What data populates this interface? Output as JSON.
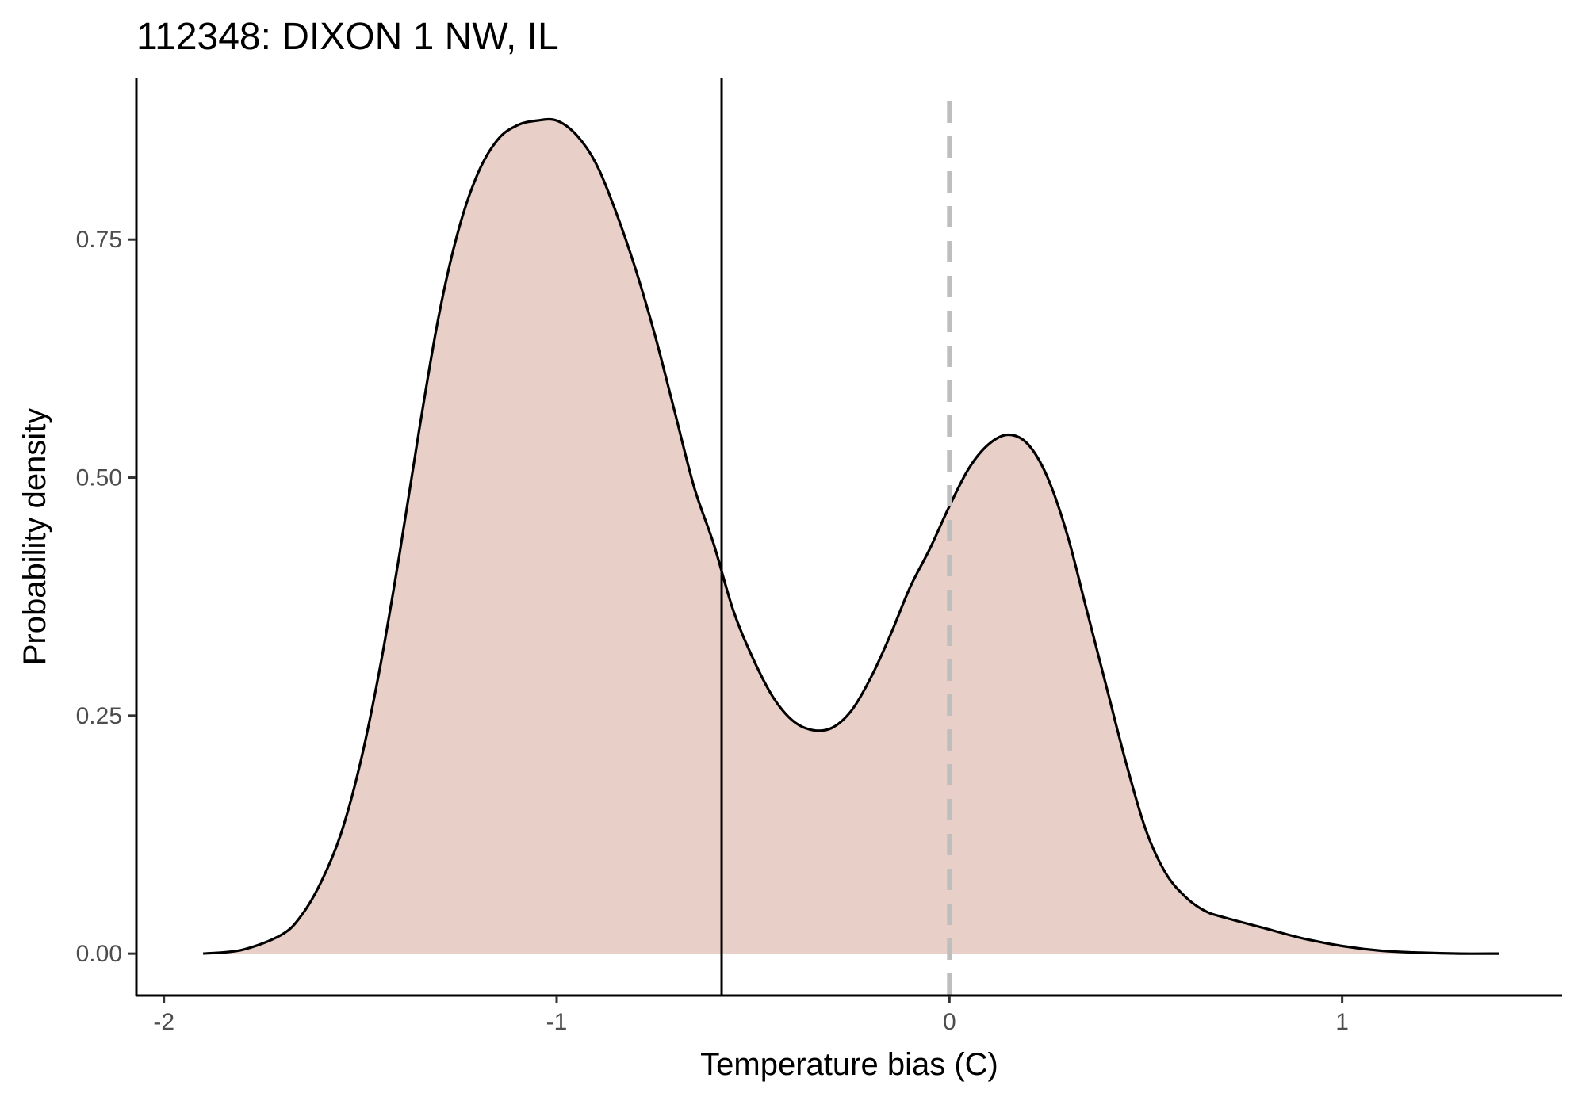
{
  "chart_data": {
    "type": "area",
    "title": "112348: DIXON 1 NW, IL",
    "xlabel": "Temperature bias (C)",
    "ylabel": "Probability density",
    "xlim": [
      -2.07,
      1.56
    ],
    "ylim": [
      -0.044,
      0.92
    ],
    "x_ticks": [
      -2,
      -1,
      0,
      1
    ],
    "x_tick_labels": [
      "-2",
      "-1",
      "0",
      "1"
    ],
    "y_ticks": [
      0.0,
      0.25,
      0.5,
      0.75
    ],
    "y_tick_labels": [
      "0.00",
      "0.25",
      "0.50",
      "0.75"
    ],
    "grid": false,
    "legend": "none",
    "fill_color": "#e8d0c9",
    "line_color": "#000000",
    "series": [
      {
        "x": [
          -1.9,
          -1.8,
          -1.7,
          -1.65,
          -1.6,
          -1.55,
          -1.5,
          -1.45,
          -1.4,
          -1.35,
          -1.3,
          -1.25,
          -1.2,
          -1.15,
          -1.1,
          -1.05,
          -1.0,
          -0.95,
          -0.9,
          -0.85,
          -0.8,
          -0.75,
          -0.7,
          -0.65,
          -0.6,
          -0.55,
          -0.5,
          -0.45,
          -0.4,
          -0.35,
          -0.3,
          -0.25,
          -0.2,
          -0.15,
          -0.1,
          -0.05,
          0.0,
          0.05,
          0.1,
          0.15,
          0.2,
          0.25,
          0.3,
          0.35,
          0.4,
          0.45,
          0.5,
          0.55,
          0.6,
          0.65,
          0.7,
          0.8,
          0.9,
          1.0,
          1.1,
          1.2,
          1.3,
          1.4
        ],
        "y": [
          0.0,
          0.004,
          0.02,
          0.04,
          0.075,
          0.125,
          0.2,
          0.3,
          0.42,
          0.55,
          0.67,
          0.76,
          0.82,
          0.855,
          0.87,
          0.875,
          0.875,
          0.86,
          0.83,
          0.78,
          0.72,
          0.65,
          0.57,
          0.49,
          0.43,
          0.36,
          0.31,
          0.27,
          0.245,
          0.235,
          0.237,
          0.255,
          0.29,
          0.335,
          0.385,
          0.425,
          0.47,
          0.51,
          0.535,
          0.545,
          0.535,
          0.5,
          0.44,
          0.36,
          0.28,
          0.2,
          0.13,
          0.085,
          0.06,
          0.045,
          0.038,
          0.027,
          0.016,
          0.008,
          0.003,
          0.001,
          0.0,
          0.0
        ]
      }
    ],
    "reference_lines": [
      {
        "x": -0.58,
        "style": "solid",
        "color": "#000000"
      },
      {
        "x": 0.0,
        "style": "dashed",
        "color": "#bebebe"
      }
    ]
  }
}
